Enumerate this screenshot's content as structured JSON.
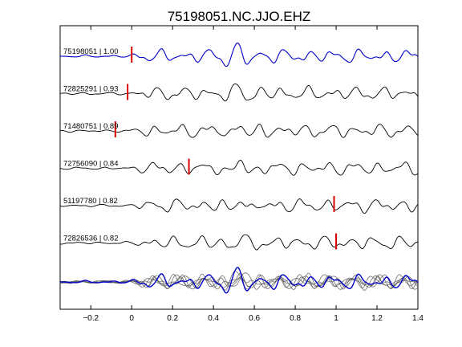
{
  "chart_data": {
    "type": "line",
    "title": "75198051.NC.JJO.EHZ",
    "xlabel": "",
    "ylabel": "",
    "xlim": [
      -0.35,
      1.4
    ],
    "x_ticks": [
      -0.2,
      0,
      0.2,
      0.4,
      0.6,
      0.8,
      1,
      1.2,
      1.4
    ],
    "x_tick_labels": [
      "−0.2",
      "0",
      "0.2",
      "0.4",
      "0.6",
      "0.8",
      "1",
      "1.2",
      "1.4"
    ],
    "grid": false,
    "traces": [
      {
        "event_id": "75198051",
        "correlation": "1.00",
        "label": "75198051 | 1.00",
        "pick_time": 0.0,
        "color": "#0000cc"
      },
      {
        "event_id": "72825291",
        "correlation": "0.93",
        "label": "72825291 | 0.93",
        "pick_time": -0.02,
        "color": "#000000"
      },
      {
        "event_id": "71480751",
        "correlation": "0.89",
        "label": "71480751 | 0.89",
        "pick_time": -0.08,
        "color": "#000000"
      },
      {
        "event_id": "72756090",
        "correlation": "0.84",
        "label": "72756090 | 0.84",
        "pick_time": 0.28,
        "color": "#000000"
      },
      {
        "event_id": "51197780",
        "correlation": "0.82",
        "label": "51197780 | 0.82",
        "pick_time": 0.99,
        "color": "#000000"
      },
      {
        "event_id": "72826536",
        "correlation": "0.82",
        "label": "72826536 | 0.82",
        "pick_time": 1.0,
        "color": "#000000"
      }
    ],
    "stack": {
      "reference_color": "#0000cc",
      "overlay_color": "#555555"
    },
    "pick_color": "#dd0000"
  }
}
